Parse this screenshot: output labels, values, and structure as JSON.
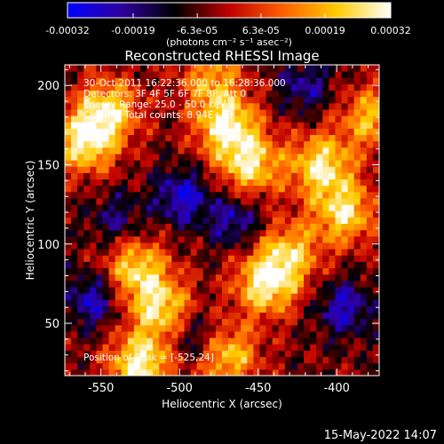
{
  "chart_data": {
    "type": "heatmap",
    "title": "Reconstructed RHESSI Image",
    "xlabel": "Heliocentric X (arcsec)",
    "ylabel": "Heliocentric Y (arcsec)",
    "xlim": [
      -573,
      -373
    ],
    "ylim": [
      17,
      213
    ],
    "x_ticks": [
      "-550",
      "-500",
      "-450",
      "-400"
    ],
    "x_tick_values": [
      -550,
      -500,
      -450,
      -400
    ],
    "y_ticks": [
      "50",
      "100",
      "150",
      "200"
    ],
    "y_tick_values": [
      50,
      100,
      150,
      200
    ],
    "colorbar": {
      "min": -0.00032,
      "max": 0.00032,
      "ticks": [
        "-0.00032",
        "-0.00019",
        "-6.3e-05",
        "6.3e-05",
        "0.00019",
        "0.00032"
      ],
      "tick_values": [
        -0.00032,
        -0.00019,
        -6.3e-05,
        6.3e-05,
        0.00019,
        0.00032
      ],
      "units_label": "(photons cm⁻² s⁻¹ asec⁻²)",
      "colormap": [
        "#0000ff",
        "#3000a0",
        "#000000",
        "#c00000",
        "#ff6000",
        "#ffcc00",
        "#ffffff"
      ]
    },
    "annotations": {
      "time": "30-Oct-2011 16:22:36.000 to 16:28:36.000",
      "detectors": "Detectors: 3F 4F 5F 6F 7F 8F, Att 0",
      "energy": "Energy Range: 25.0 - 50.0 keV",
      "clean": "Clean     Total counts: 8.94E+03",
      "peak": "Position of Peak = [-525,24]"
    },
    "grid_resolution_arcsec": 4,
    "hotspots": [
      {
        "x": -560,
        "y": 165,
        "level": 0.95
      },
      {
        "x": -545,
        "y": 185,
        "level": 0.8
      },
      {
        "x": -525,
        "y": 24,
        "level": 1.0
      },
      {
        "x": -512,
        "y": 60,
        "level": 0.85
      },
      {
        "x": -528,
        "y": 85,
        "level": 0.8
      },
      {
        "x": -470,
        "y": 175,
        "level": 0.95
      },
      {
        "x": -455,
        "y": 150,
        "level": 0.85
      },
      {
        "x": -445,
        "y": 75,
        "level": 0.95
      },
      {
        "x": -430,
        "y": 95,
        "level": 0.7
      },
      {
        "x": -410,
        "y": 150,
        "level": 0.9
      },
      {
        "x": -395,
        "y": 120,
        "level": 0.85
      },
      {
        "x": -378,
        "y": 180,
        "level": 0.7
      },
      {
        "x": -470,
        "y": 30,
        "level": 0.8
      },
      {
        "x": -480,
        "y": 205,
        "level": 0.6
      }
    ],
    "coldspots": [
      {
        "x": -498,
        "y": 130,
        "level": 1.0
      },
      {
        "x": -465,
        "y": 115,
        "level": 0.8
      },
      {
        "x": -555,
        "y": 65,
        "level": 0.9
      },
      {
        "x": -395,
        "y": 60,
        "level": 0.9
      },
      {
        "x": -420,
        "y": 200,
        "level": 0.7
      },
      {
        "x": -490,
        "y": 40,
        "level": 0.7
      },
      {
        "x": -540,
        "y": 115,
        "level": 0.6
      }
    ]
  },
  "footer": {
    "date": "15-May-2022 14:07"
  }
}
